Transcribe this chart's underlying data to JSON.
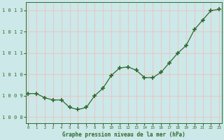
{
  "x": [
    0,
    1,
    2,
    3,
    4,
    5,
    6,
    7,
    8,
    9,
    10,
    11,
    12,
    13,
    14,
    15,
    16,
    17,
    18,
    19,
    20,
    21,
    22,
    23
  ],
  "y": [
    1009.1,
    1009.1,
    1008.9,
    1008.8,
    1008.8,
    1008.45,
    1008.35,
    1008.45,
    1009.0,
    1009.35,
    1009.95,
    1010.3,
    1010.35,
    1010.2,
    1009.85,
    1009.85,
    1010.1,
    1010.55,
    1011.0,
    1011.35,
    1012.1,
    1012.55,
    1013.0,
    1013.05
  ],
  "line_color": "#2d6a2d",
  "marker_color": "#2d6a2d",
  "bg_color": "#cce8e8",
  "grid_color_h": "#e8c8c8",
  "grid_color_v": "#e8c8c8",
  "xlabel": "Graphe pression niveau de la mer (hPa)",
  "xlabel_color": "#2d6a2d",
  "tick_color": "#2d6a2d",
  "ylim": [
    1007.7,
    1013.4
  ],
  "yticks": [
    1008,
    1009,
    1010,
    1011,
    1012,
    1013
  ],
  "xticks": [
    0,
    1,
    2,
    3,
    4,
    5,
    6,
    7,
    8,
    9,
    10,
    11,
    12,
    13,
    14,
    15,
    16,
    17,
    18,
    19,
    20,
    21,
    22,
    23
  ],
  "xlim": [
    -0.3,
    23.3
  ]
}
